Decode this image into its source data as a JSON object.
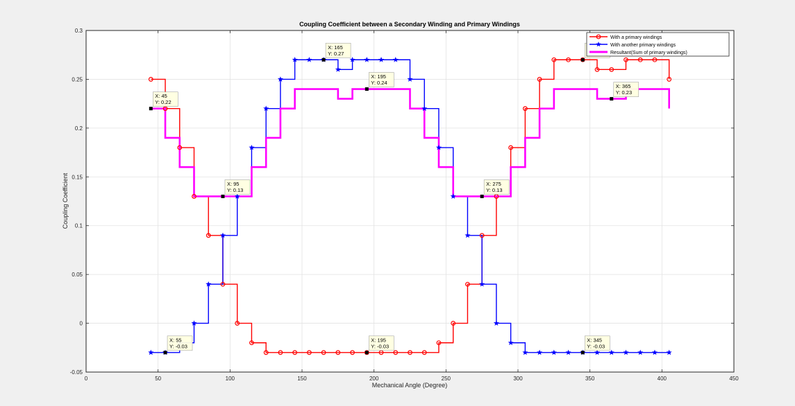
{
  "chart_data": {
    "type": "line",
    "title": "Coupling Coefficient between a Secondary Winding and Primary Windings",
    "xlabel": "Mechanical Angle (Degree)",
    "ylabel": "Coupling Coefficient",
    "xlim": [
      0,
      450
    ],
    "ylim": [
      -0.05,
      0.3
    ],
    "xticks": [
      0,
      50,
      100,
      150,
      200,
      250,
      300,
      350,
      400,
      450
    ],
    "yticks": [
      -0.05,
      0,
      0.05,
      0.1,
      0.15,
      0.2,
      0.25,
      0.3
    ],
    "xtick_labels": [
      "0",
      "50",
      "100",
      "150",
      "200",
      "250",
      "300",
      "350",
      "400",
      "450"
    ],
    "ytick_labels": [
      "-0.05",
      "0",
      "0.05",
      "0.1",
      "0.15",
      "0.2",
      "0.25",
      "0.3"
    ],
    "grid": true,
    "legend_position": "top-right",
    "step": "post",
    "series": [
      {
        "name": "With a primary windings",
        "color": "#ff0000",
        "marker": "circle",
        "x": [
          45,
          55,
          65,
          75,
          85,
          95,
          105,
          115,
          125,
          135,
          145,
          155,
          165,
          175,
          185,
          195,
          205,
          215,
          225,
          235,
          245,
          255,
          265,
          275,
          285,
          295,
          305,
          315,
          325,
          335,
          345,
          355,
          365,
          375,
          385,
          395,
          405
        ],
        "y": [
          0.25,
          0.22,
          0.18,
          0.13,
          0.09,
          0.04,
          0,
          -0.02,
          -0.03,
          -0.03,
          -0.03,
          -0.03,
          -0.03,
          -0.03,
          -0.03,
          -0.03,
          -0.03,
          -0.03,
          -0.03,
          -0.03,
          -0.02,
          0,
          0.04,
          0.09,
          0.13,
          0.18,
          0.22,
          0.25,
          0.27,
          0.27,
          0.27,
          0.26,
          0.26,
          0.27,
          0.27,
          0.27,
          0.25
        ]
      },
      {
        "name": "With another primary windings",
        "color": "#0000ff",
        "marker": "star",
        "x": [
          45,
          55,
          65,
          75,
          85,
          95,
          105,
          115,
          125,
          135,
          145,
          155,
          165,
          175,
          185,
          195,
          205,
          215,
          225,
          235,
          245,
          255,
          265,
          275,
          285,
          295,
          305,
          315,
          325,
          335,
          345,
          355,
          365,
          375,
          385,
          395,
          405
        ],
        "y": [
          -0.03,
          -0.03,
          -0.02,
          0,
          0.04,
          0.09,
          0.13,
          0.18,
          0.22,
          0.25,
          0.27,
          0.27,
          0.27,
          0.26,
          0.27,
          0.27,
          0.27,
          0.27,
          0.25,
          0.22,
          0.18,
          0.13,
          0.09,
          0.04,
          0,
          -0.02,
          -0.03,
          -0.03,
          -0.03,
          -0.03,
          -0.03,
          -0.03,
          -0.03,
          -0.03,
          -0.03,
          -0.03,
          -0.03
        ]
      },
      {
        "name": "Resultant(Sum of primary windings)",
        "color": "#ff00ff",
        "marker": "none",
        "x": [
          45,
          55,
          65,
          75,
          85,
          95,
          105,
          115,
          125,
          135,
          145,
          155,
          165,
          175,
          185,
          195,
          205,
          215,
          225,
          235,
          245,
          255,
          265,
          275,
          285,
          295,
          305,
          315,
          325,
          335,
          345,
          355,
          365,
          375,
          385,
          395,
          405
        ],
        "y": [
          0.22,
          0.19,
          0.16,
          0.13,
          0.13,
          0.13,
          0.13,
          0.16,
          0.19,
          0.22,
          0.24,
          0.24,
          0.24,
          0.23,
          0.24,
          0.24,
          0.24,
          0.24,
          0.22,
          0.19,
          0.16,
          0.13,
          0.13,
          0.13,
          0.13,
          0.16,
          0.19,
          0.22,
          0.24,
          0.24,
          0.24,
          0.23,
          0.23,
          0.24,
          0.24,
          0.24,
          0.22
        ]
      }
    ],
    "datatips": [
      {
        "x": 45,
        "y": 0.22,
        "xl": "X: 45",
        "yl": "Y: 0.22",
        "side": "above"
      },
      {
        "x": 55,
        "y": -0.03,
        "xl": "X: 55",
        "yl": "Y: -0.03",
        "side": "above"
      },
      {
        "x": 95,
        "y": 0.13,
        "xl": "X: 95",
        "yl": "Y: 0.13",
        "side": "above"
      },
      {
        "x": 165,
        "y": 0.27,
        "xl": "X: 165",
        "yl": "Y: 0.27",
        "side": "above"
      },
      {
        "x": 195,
        "y": 0.24,
        "xl": "X: 195",
        "yl": "Y: 0.24",
        "side": "above"
      },
      {
        "x": 195,
        "y": -0.03,
        "xl": "X: 195",
        "yl": "Y: -0.03",
        "side": "above"
      },
      {
        "x": 275,
        "y": 0.13,
        "xl": "X: 275",
        "yl": "Y: 0.13",
        "side": "above"
      },
      {
        "x": 345,
        "y": 0.27,
        "xl": "X: 345",
        "yl": "Y: 0.27",
        "side": "above"
      },
      {
        "x": 365,
        "y": 0.23,
        "xl": "X: 365",
        "yl": "Y: 0.23",
        "side": "above"
      },
      {
        "x": 345,
        "y": -0.03,
        "xl": "X: 345",
        "yl": "Y: -0.03",
        "side": "above"
      }
    ]
  }
}
